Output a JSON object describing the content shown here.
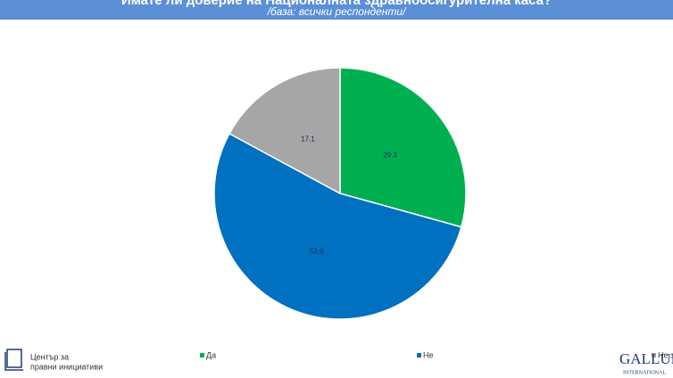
{
  "chart_data": {
    "type": "pie",
    "title": "Имате ли доверие на Националната здравноосигурителна каса?",
    "subtitle": "/база: всички респонденти/",
    "categories": [
      "Да",
      "Не",
      "Не знам"
    ],
    "values": [
      29.3,
      53.6,
      17.1
    ],
    "colors": [
      "#00b050",
      "#0070c0",
      "#a6a6a6"
    ],
    "legend": "bottom"
  },
  "logos": {
    "left": [
      "Център за",
      "правни инициативи"
    ],
    "right": [
      "GALLUP",
      "INTERNATIONAL"
    ]
  }
}
